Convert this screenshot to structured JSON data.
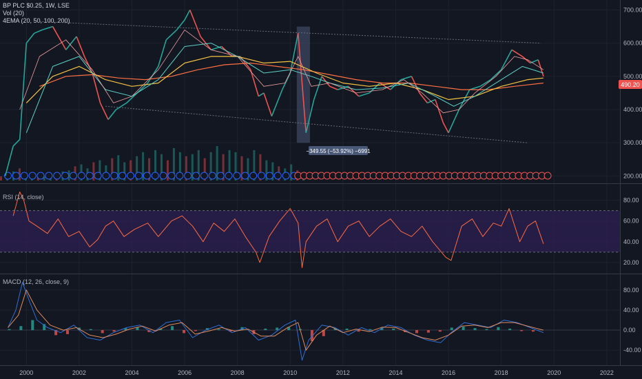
{
  "legend": {
    "symbol": "BP PLC $0.25, 1W, LSE",
    "volume": "Vol (20)",
    "ema": "4EMA (20, 50, 100, 200)",
    "rsi": "RSI (14, close)",
    "macd": "MACD (12, 26, close, 9)"
  },
  "colors": {
    "background": "#131722",
    "grid": "#1e222d",
    "up": "#26a69a",
    "down": "#ef5350",
    "ema20": "#f0a0a0",
    "ema50": "#5bd3c8",
    "ema100": "#f5c242",
    "ema200": "#ff7043",
    "rsi": "#ff6a3d",
    "rsi_band": "#2a1f4d",
    "macd": "#2f6fd8",
    "signal": "#e08a5a",
    "price_tag": "#ef5350",
    "measure": "#4a5878"
  },
  "price_tag": "490.20",
  "measure_label": "−349.55 (−53.92%) −6991",
  "chart_data": [
    {
      "type": "line",
      "panel": "price",
      "title": "BP PLC $0.25, 1W, LSE",
      "x_ticks": [
        "2000",
        "2002",
        "2004",
        "2006",
        "2008",
        "2010",
        "2012",
        "2014",
        "2016",
        "2018",
        "2020",
        "2022"
      ],
      "xlim": [
        1999.0,
        2022.5
      ],
      "y_ticks": [
        "200.00",
        "300.00",
        "400.00",
        "500.00",
        "600.00",
        "700.00"
      ],
      "ylim": [
        180,
        730
      ],
      "log_scale": false,
      "grid": true,
      "series": [
        {
          "key": "price",
          "x": [
            1999.2,
            1999.5,
            1999.75,
            2000.0,
            2000.3,
            2000.6,
            2001.0,
            2001.5,
            2001.9,
            2002.2,
            2002.5,
            2002.8,
            2003.1,
            2003.4,
            2003.8,
            2004.2,
            2004.6,
            2005.0,
            2005.3,
            2005.7,
            2006.0,
            2006.2,
            2006.6,
            2007.0,
            2007.4,
            2007.8,
            2008.1,
            2008.5,
            2008.8,
            2009.0,
            2009.3,
            2009.7,
            2010.0,
            2010.3,
            2010.45,
            2010.6,
            2010.9,
            2011.2,
            2011.5,
            2011.8,
            2012.2,
            2012.6,
            2013.0,
            2013.4,
            2013.8,
            2014.2,
            2014.6,
            2014.9,
            2015.2,
            2015.5,
            2015.8,
            2016.0,
            2016.4,
            2016.8,
            2017.2,
            2017.6,
            2018.0,
            2018.4,
            2018.8,
            2019.1,
            2019.4,
            2019.6
          ],
          "y": [
            200,
            290,
            310,
            600,
            630,
            640,
            650,
            580,
            620,
            560,
            510,
            420,
            370,
            400,
            420,
            450,
            480,
            530,
            610,
            640,
            670,
            700,
            620,
            580,
            590,
            560,
            560,
            520,
            440,
            450,
            380,
            460,
            510,
            630,
            480,
            330,
            430,
            500,
            470,
            460,
            470,
            440,
            450,
            480,
            460,
            490,
            500,
            450,
            420,
            430,
            360,
            330,
            400,
            460,
            470,
            490,
            520,
            580,
            560,
            540,
            550,
            500
          ]
        },
        {
          "key": "ema20",
          "x": [
            1999.75,
            2000.5,
            2001.5,
            2002.5,
            2003.3,
            2004.0,
            2005.0,
            2006.0,
            2007.0,
            2008.0,
            2009.0,
            2009.8,
            2010.3,
            2010.8,
            2011.5,
            2012.5,
            2013.5,
            2014.3,
            2015.0,
            2015.8,
            2016.4,
            2017.0,
            2017.8,
            2018.5,
            2019.0,
            2019.6
          ],
          "y": [
            400,
            560,
            610,
            520,
            420,
            440,
            520,
            640,
            580,
            560,
            470,
            480,
            560,
            470,
            480,
            450,
            460,
            490,
            450,
            390,
            400,
            450,
            500,
            560,
            550,
            520
          ]
        },
        {
          "key": "ema50",
          "x": [
            2000.0,
            2001.0,
            2002.0,
            2003.0,
            2004.0,
            2005.0,
            2006.0,
            2007.0,
            2008.0,
            2009.0,
            2010.0,
            2010.8,
            2011.5,
            2012.5,
            2013.5,
            2014.5,
            2015.5,
            2016.2,
            2017.0,
            2018.0,
            2018.8,
            2019.6
          ],
          "y": [
            330,
            530,
            560,
            460,
            440,
            490,
            590,
            600,
            560,
            510,
            520,
            500,
            480,
            460,
            465,
            480,
            440,
            410,
            440,
            490,
            530,
            510
          ]
        },
        {
          "key": "ema100",
          "x": [
            2000.0,
            2001.0,
            2002.0,
            2003.0,
            2004.0,
            2005.0,
            2006.0,
            2007.0,
            2008.0,
            2009.0,
            2010.0,
            2011.0,
            2012.0,
            2013.0,
            2014.0,
            2015.0,
            2016.0,
            2017.0,
            2018.0,
            2019.0,
            2019.6
          ],
          "y": [
            420,
            500,
            530,
            490,
            470,
            480,
            540,
            560,
            560,
            540,
            545,
            510,
            480,
            470,
            480,
            460,
            430,
            440,
            470,
            490,
            495
          ]
        },
        {
          "key": "ema200",
          "x": [
            2000.5,
            2001.5,
            2002.5,
            2003.5,
            2004.5,
            2005.5,
            2006.5,
            2007.5,
            2008.5,
            2009.5,
            2010.5,
            2011.5,
            2012.5,
            2013.5,
            2014.5,
            2015.5,
            2016.5,
            2017.5,
            2018.5,
            2019.6
          ],
          "y": [
            470,
            500,
            505,
            495,
            490,
            500,
            520,
            535,
            540,
            530,
            520,
            505,
            490,
            480,
            480,
            470,
            460,
            460,
            470,
            480
          ]
        }
      ],
      "trendlines": [
        {
          "x": [
            2000.5,
            2019.5
          ],
          "y": [
            665,
            600
          ]
        },
        {
          "x": [
            2003.0,
            2019.0
          ],
          "y": [
            410,
            300
          ]
        }
      ],
      "volume": [
        4,
        6,
        9,
        12,
        8,
        5,
        6,
        4,
        5,
        7,
        9,
        10,
        14,
        16,
        12,
        18,
        20,
        15,
        22,
        25,
        18,
        20,
        24,
        28,
        22,
        30,
        26,
        20,
        32,
        28,
        24,
        26,
        30,
        22,
        28,
        34,
        26,
        30,
        28,
        24,
        22,
        30,
        26,
        20,
        18,
        14,
        12,
        16,
        10,
        8
      ]
    },
    {
      "type": "line",
      "panel": "rsi",
      "title": "RSI (14, close)",
      "y_ticks": [
        "20.00",
        "40.00",
        "60.00",
        "80.00"
      ],
      "ylim": [
        10,
        95
      ],
      "band": [
        30,
        70
      ],
      "series": [
        {
          "key": "rsi",
          "x": [
            1999.5,
            1999.75,
            1999.9,
            2000.1,
            2000.4,
            2000.8,
            2001.2,
            2001.6,
            2002.0,
            2002.4,
            2002.7,
            2003.0,
            2003.3,
            2003.7,
            2004.1,
            2004.6,
            2005.0,
            2005.5,
            2005.9,
            2006.3,
            2006.7,
            2007.1,
            2007.5,
            2007.9,
            2008.3,
            2008.7,
            2008.85,
            2009.2,
            2009.6,
            2010.0,
            2010.3,
            2010.45,
            2010.6,
            2011.0,
            2011.4,
            2011.8,
            2012.2,
            2012.6,
            2013.0,
            2013.4,
            2013.8,
            2014.2,
            2014.6,
            2015.0,
            2015.4,
            2015.9,
            2016.1,
            2016.5,
            2016.9,
            2017.3,
            2017.7,
            2018.0,
            2018.3,
            2018.7,
            2019.0,
            2019.3,
            2019.6
          ],
          "y": [
            65,
            88,
            80,
            60,
            55,
            48,
            62,
            45,
            50,
            35,
            42,
            55,
            60,
            45,
            52,
            58,
            45,
            60,
            65,
            55,
            40,
            58,
            50,
            62,
            45,
            30,
            20,
            45,
            60,
            72,
            58,
            15,
            40,
            55,
            62,
            40,
            55,
            60,
            45,
            55,
            62,
            50,
            45,
            55,
            40,
            25,
            22,
            55,
            62,
            45,
            58,
            55,
            72,
            40,
            55,
            60,
            38
          ]
        }
      ]
    },
    {
      "type": "line",
      "panel": "macd",
      "title": "MACD (12, 26, close, 9)",
      "y_ticks": [
        "-40.00",
        "0.00",
        "40.00",
        "80.00"
      ],
      "ylim": [
        -70,
        110
      ],
      "series": [
        {
          "key": "macd",
          "x": [
            1999.3,
            1999.6,
            1999.85,
            2000.1,
            2000.4,
            2000.8,
            2001.3,
            2001.8,
            2002.3,
            2002.8,
            2003.3,
            2003.8,
            2004.3,
            2004.8,
            2005.3,
            2005.8,
            2006.3,
            2006.8,
            2007.3,
            2007.8,
            2008.3,
            2008.8,
            2009.3,
            2009.8,
            2010.2,
            2010.45,
            2010.7,
            2011.2,
            2011.7,
            2012.2,
            2012.7,
            2013.2,
            2013.7,
            2014.2,
            2014.7,
            2015.2,
            2015.7,
            2016.1,
            2016.6,
            2017.1,
            2017.6,
            2018.1,
            2018.6,
            2019.1,
            2019.6
          ],
          "y": [
            5,
            40,
            95,
            60,
            20,
            5,
            -5,
            10,
            -15,
            -20,
            -5,
            5,
            10,
            -5,
            15,
            20,
            -15,
            0,
            10,
            -5,
            5,
            -20,
            -10,
            10,
            20,
            -60,
            -20,
            10,
            5,
            -10,
            5,
            -5,
            10,
            5,
            -10,
            -20,
            -25,
            -5,
            15,
            10,
            5,
            20,
            15,
            5,
            -5
          ]
        },
        {
          "key": "signal",
          "x": [
            1999.3,
            1999.7,
            2000.0,
            2000.4,
            2000.9,
            2001.4,
            2001.9,
            2002.4,
            2002.9,
            2003.4,
            2003.9,
            2004.4,
            2004.9,
            2005.4,
            2005.9,
            2006.4,
            2006.9,
            2007.4,
            2007.9,
            2008.4,
            2008.9,
            2009.4,
            2009.9,
            2010.3,
            2010.6,
            2011.0,
            2011.5,
            2012.0,
            2012.5,
            2013.0,
            2013.5,
            2014.0,
            2014.5,
            2015.0,
            2015.5,
            2016.0,
            2016.5,
            2017.0,
            2017.5,
            2018.0,
            2018.5,
            2019.0,
            2019.6
          ],
          "y": [
            5,
            30,
            80,
            40,
            10,
            0,
            5,
            -10,
            -15,
            -8,
            2,
            8,
            -2,
            10,
            15,
            -8,
            -2,
            5,
            -2,
            2,
            -12,
            -12,
            5,
            15,
            -40,
            -10,
            8,
            -5,
            2,
            -3,
            6,
            5,
            -5,
            -15,
            -20,
            -10,
            8,
            10,
            5,
            15,
            15,
            8,
            0
          ]
        }
      ],
      "histogram": [
        2,
        8,
        20,
        12,
        -10,
        -8,
        5,
        2,
        -6,
        -3,
        4,
        6,
        -4,
        3,
        8,
        -6,
        -2,
        4,
        2,
        -3,
        6,
        -8,
        3,
        5,
        6,
        2,
        -22,
        -12,
        4,
        3,
        -3,
        2,
        5,
        3,
        -4,
        -6,
        -5,
        -3,
        5,
        7,
        4,
        2,
        6,
        3,
        -2,
        -3
      ]
    }
  ]
}
